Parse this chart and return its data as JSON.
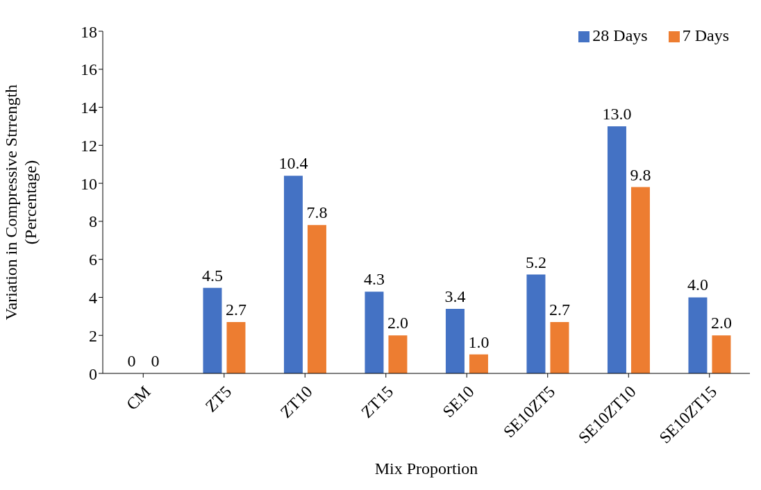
{
  "chart_data": {
    "type": "bar",
    "xlabel": "Mix Proportion",
    "ylabel": "Variation in Compressive Strrength\n(Percentage)",
    "categories": [
      "CM",
      "ZT5",
      "ZT10",
      "ZT15",
      "SE10",
      "SE10ZT5",
      "SE10ZT10",
      "SE10ZT15"
    ],
    "series": [
      {
        "name": "28 Days",
        "color": "#4472c4",
        "values": [
          0,
          4.5,
          10.4,
          4.3,
          3.4,
          5.2,
          13.0,
          4.0
        ],
        "value_labels": [
          "0",
          "4.5",
          "10.4",
          "4.3",
          "3.4",
          "5.2",
          "13.0",
          "4.0"
        ]
      },
      {
        "name": "7 Days",
        "color": "#ed7d31",
        "values": [
          0,
          2.7,
          7.8,
          2.0,
          1.0,
          2.7,
          9.8,
          2.0
        ],
        "value_labels": [
          "0",
          "2.7",
          "7.8",
          "2.0",
          "1.0",
          "2.7",
          "9.8",
          "2.0"
        ]
      }
    ],
    "ylim": [
      0,
      18
    ],
    "yticks": [
      0,
      2,
      4,
      6,
      8,
      10,
      12,
      14,
      16,
      18
    ],
    "grid": false,
    "legend": "top right"
  }
}
